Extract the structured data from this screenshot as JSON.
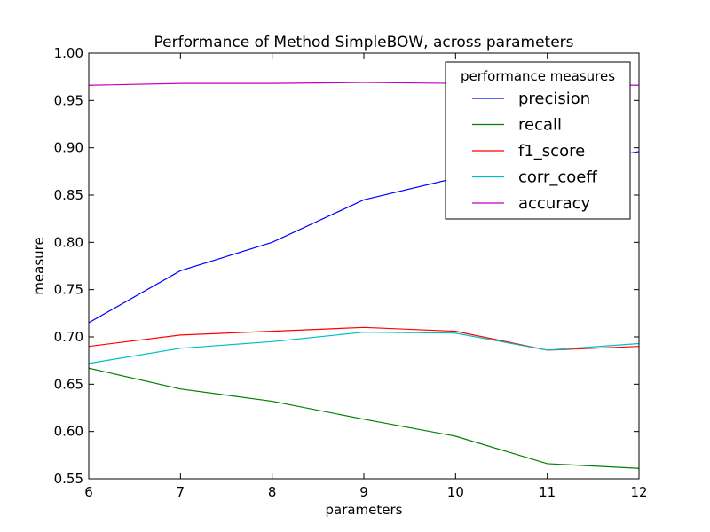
{
  "chart_data": {
    "type": "line",
    "title": "Performance of Method SimpleBOW, across parameters",
    "xlabel": "parameters",
    "ylabel": "measure",
    "xlim": [
      6,
      12
    ],
    "ylim": [
      0.55,
      1.0
    ],
    "x": [
      6,
      7,
      8,
      9,
      10,
      11,
      12
    ],
    "xticks": [
      "6",
      "7",
      "8",
      "9",
      "10",
      "11",
      "12"
    ],
    "yticks": [
      "0.55",
      "0.60",
      "0.65",
      "0.70",
      "0.75",
      "0.80",
      "0.85",
      "0.90",
      "0.95",
      "1.00"
    ],
    "grid": false,
    "legend": {
      "title": "performance measures",
      "placement": "top-right"
    },
    "series": [
      {
        "name": "precision",
        "color": "#0000ff",
        "values": [
          0.715,
          0.77,
          0.8,
          0.845,
          0.868,
          0.88,
          0.896
        ]
      },
      {
        "name": "recall",
        "color": "#008000",
        "values": [
          0.667,
          0.645,
          0.632,
          0.613,
          0.595,
          0.566,
          0.561
        ]
      },
      {
        "name": "f1_score",
        "color": "#ff0000",
        "values": [
          0.69,
          0.702,
          0.706,
          0.71,
          0.706,
          0.686,
          0.69
        ]
      },
      {
        "name": "corr_coeff",
        "color": "#00bfbf",
        "values": [
          0.672,
          0.688,
          0.695,
          0.705,
          0.704,
          0.686,
          0.693
        ]
      },
      {
        "name": "accuracy",
        "color": "#bf00bf",
        "values": [
          0.966,
          0.968,
          0.968,
          0.969,
          0.968,
          0.967,
          0.966
        ]
      }
    ]
  }
}
